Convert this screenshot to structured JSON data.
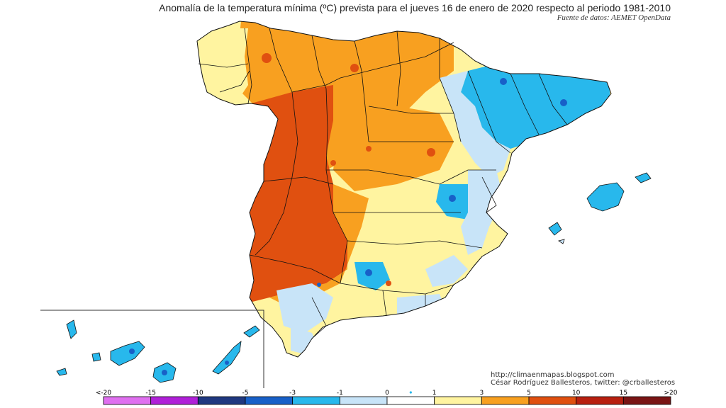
{
  "title": "Anomalía de la temperatura mínima (ºC) prevista para el jueves 16 de enero de 2020 respecto al periodo 1981-2010",
  "source": "Fuente de datos: AEMET OpenData",
  "credit": {
    "url": "http://climaenmapas.blogspot.com",
    "author": "César Rodríguez Ballesteros, twitter: @crballesteros"
  },
  "legend": {
    "ticks": [
      "<-20",
      "-15",
      "-10",
      "-5",
      "-3",
      "-1",
      "0",
      "1",
      "3",
      "5",
      "10",
      "15",
      ">20"
    ],
    "colors": [
      "#e070f0",
      "#b020d8",
      "#203880",
      "#1860c8",
      "#28b8ec",
      "#c8e4f8",
      "#ffffff",
      "#fff4a0",
      "#f8a020",
      "#e05010",
      "#b82010",
      "#7a1414"
    ],
    "center_marker_color": "#28b8ec"
  },
  "palette": {
    "warm_light": "#fff4a0",
    "warm_mid": "#f8a020",
    "warm_strong": "#e05010",
    "warm_extreme": "#b82010",
    "cool_light": "#c8e4f8",
    "cool_mid": "#28b8ec",
    "cool_strong": "#1860c8"
  }
}
